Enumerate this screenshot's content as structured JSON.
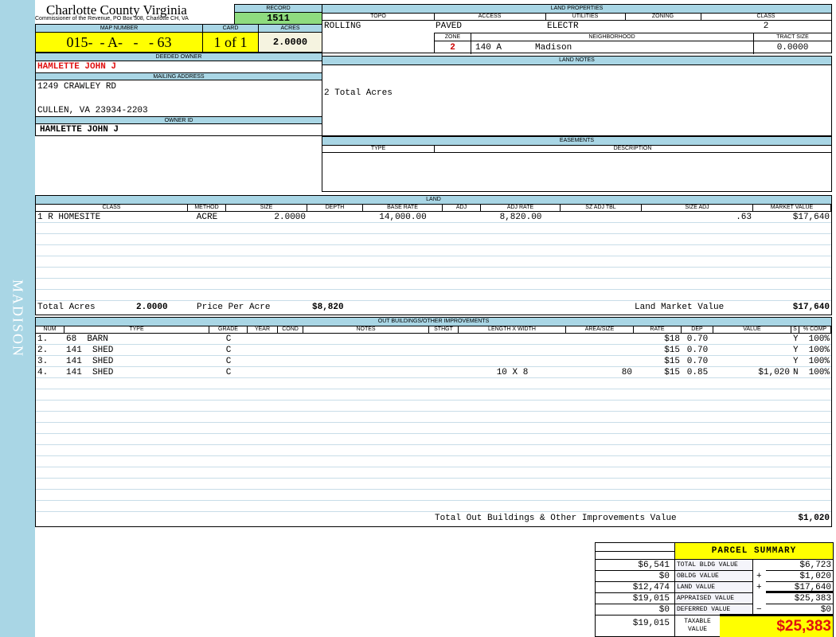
{
  "sidebar": {
    "label": "MADISON"
  },
  "header": {
    "title": "Charlotte County Virginia",
    "subtitle": "Commissioner of the Revenue, PO Box 308, Charlotte CH, VA",
    "record_label": "RECORD",
    "record": "1511"
  },
  "parcel": {
    "map_label": "MAP NUMBER",
    "map": "015-  - A-   -   - 63",
    "card_label": "CARD",
    "card": "1 of 1",
    "acres_label": "ACRES",
    "acres": "2.0000"
  },
  "owner": {
    "deeded_label": "DEEDED OWNER",
    "deeded": "HAMLETTE JOHN J",
    "mailing_label": "MAILING ADDRESS",
    "addr1": "1249 CRAWLEY RD",
    "addr2": "CULLEN, VA 23934-2203",
    "id_label": "OWNER ID",
    "id": "HAMLETTE JOHN J"
  },
  "land_props": {
    "title": "LAND PROPERTIES",
    "topo_label": "TOPO",
    "topo": "ROLLING",
    "access_label": "ACCESS",
    "access": "PAVED",
    "utilities_label": "UTILITIES",
    "utilities": "ELECTR",
    "zoning_label": "ZONING",
    "zoning": "",
    "class_label": "CLASS",
    "class": "2",
    "zone_label": "ZONE",
    "zone": "2",
    "neighborhood_label": "NEIGHBORHOOD",
    "neighborhood_code": "140 A",
    "neighborhood": "Madison",
    "tract_label": "TRACT SIZE",
    "tract": "0.0000"
  },
  "land_notes": {
    "title": "LAND NOTES",
    "text": "2 Total Acres"
  },
  "easements": {
    "title": "EASEMENTS",
    "type_label": "TYPE",
    "desc_label": "DESCRIPTION"
  },
  "land": {
    "title": "LAND",
    "columns": [
      "CLASS",
      "METHOD",
      "SIZE",
      "DEPTH",
      "BASE RATE",
      "ADJ",
      "ADJ RATE",
      "SZ ADJ TBL",
      "Size Adj",
      "MARKET VALUE"
    ],
    "rows": [
      [
        "1 R HOMESITE",
        "ACRE",
        "2.0000",
        "",
        "14,000.00",
        "",
        "8,820.00",
        "",
        ".63",
        "$17,640"
      ]
    ],
    "total_acres_label": "Total Acres",
    "total_acres": "2.0000",
    "ppa_label": "Price Per Acre",
    "ppa": "$8,820",
    "lmv_label": "Land Market Value",
    "lmv": "$17,640"
  },
  "outbuildings": {
    "title": "OUT BUILDINGS/OTHER IMPROVEMENTS",
    "columns": [
      "NUM",
      "TYPE",
      "GRADE",
      "YEAR",
      "COND",
      "NOTES",
      "STHGT",
      "LENGTH X WIDTH",
      "AREA/SIZE",
      "RATE",
      "DEP",
      "VALUE",
      "S",
      "% COMP"
    ],
    "rows": [
      [
        "1.",
        "68  BARN",
        "C",
        "",
        "",
        "",
        "",
        "",
        "",
        "$18",
        "0.70",
        "",
        "Y",
        "100%"
      ],
      [
        "2.",
        "141  SHED",
        "C",
        "",
        "",
        "",
        "",
        "",
        "",
        "$15",
        "0.70",
        "",
        "Y",
        "100%"
      ],
      [
        "3.",
        "141  SHED",
        "C",
        "",
        "",
        "",
        "",
        "",
        "",
        "$15",
        "0.70",
        "",
        "Y",
        "100%"
      ],
      [
        "4.",
        "141  SHED",
        "C",
        "",
        "",
        "",
        "",
        "10 X 8",
        "80",
        "$15",
        "0.85",
        "$1,020",
        "N",
        "100%"
      ]
    ],
    "total_label": "Total Out Buildings & Other Improvements Value",
    "total": "$1,020"
  },
  "summary": {
    "title": "PARCEL SUMMARY",
    "rows": [
      {
        "prior": "$6,541",
        "label": "TOTAL BLDG VALUE",
        "op": "",
        "value": "$6,723"
      },
      {
        "prior": "$0",
        "label": "OBLDG VALUE",
        "op": "+",
        "value": "$1,020"
      },
      {
        "prior": "$12,474",
        "label": "LAND VALUE",
        "op": "+",
        "value": "$17,640"
      },
      {
        "prior": "$19,015",
        "label": "APPRAISED VALUE",
        "op": "",
        "value": "$25,383"
      },
      {
        "prior": "$0",
        "label": "DEFERRED VALUE",
        "op": "−",
        "value": "$0"
      }
    ],
    "taxable_prior": "$19,015",
    "taxable_label": "TAXABLE VALUE",
    "taxable": "$25,383"
  },
  "colors": {
    "header": "#a9d6e5",
    "highlight": "#ffff00",
    "record": "#8fdc7f",
    "owner_red": "#e01010"
  }
}
